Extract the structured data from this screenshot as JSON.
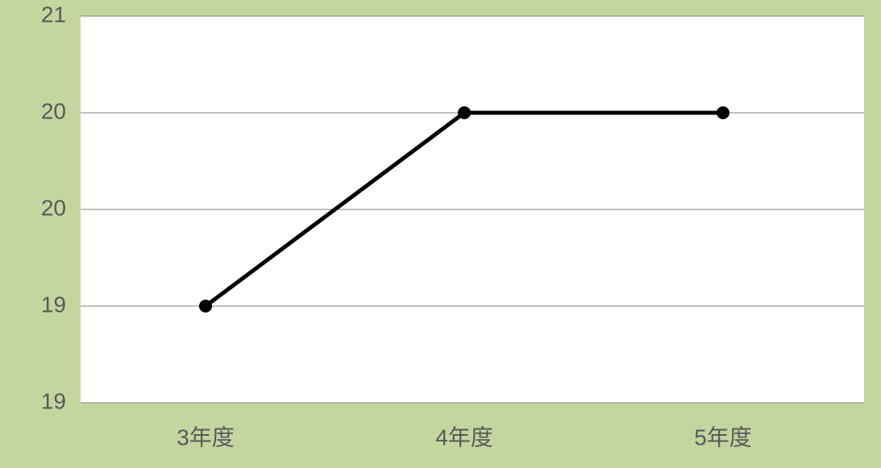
{
  "chart": {
    "type": "line",
    "background_color": "#c4d6a0",
    "plot_background_color": "#ffffff",
    "grid_color": "#808080",
    "grid_stroke_width": 1,
    "axis_label_color": "#595959",
    "axis_label_fontsize": 28,
    "line_color": "#000000",
    "line_stroke_width": 5,
    "marker_color": "#000000",
    "marker_radius": 8,
    "ylim": [
      18.5,
      20.5
    ],
    "yticks": [
      {
        "value": 18.5,
        "label": "19"
      },
      {
        "value": 19.0,
        "label": "19"
      },
      {
        "value": 19.5,
        "label": "20"
      },
      {
        "value": 20.0,
        "label": "20"
      },
      {
        "value": 20.5,
        "label": "21"
      }
    ],
    "categories": [
      "3年度",
      "4年度",
      "5年度"
    ],
    "values": [
      19.0,
      20.0,
      20.0
    ]
  }
}
